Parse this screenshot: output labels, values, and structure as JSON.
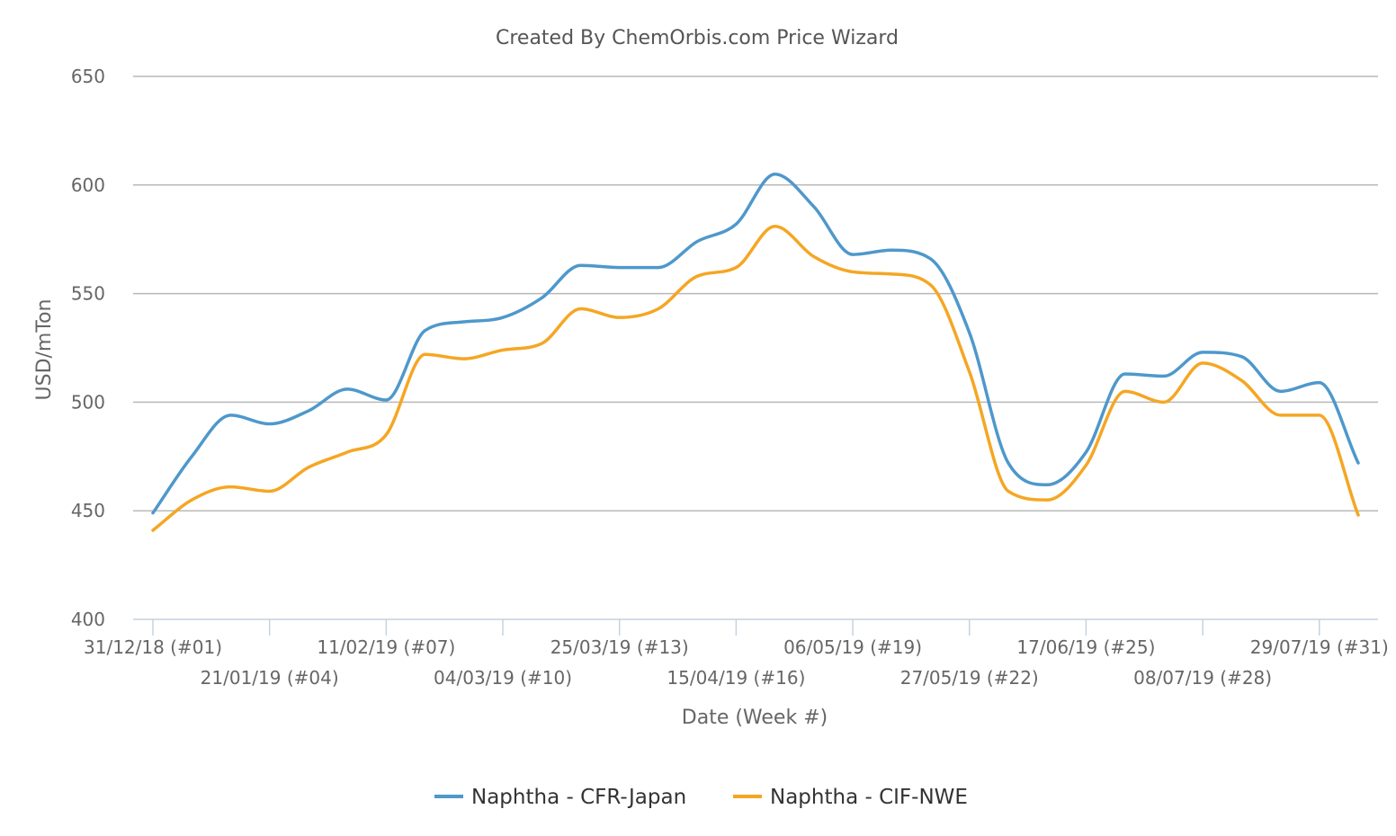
{
  "chart_data": {
    "type": "line",
    "title": "Created By ChemOrbis.com Price Wizard",
    "xlabel": "Date (Week #)",
    "ylabel": "USD/mTon",
    "ylim": [
      400,
      650
    ],
    "yticks": [
      400,
      450,
      500,
      550,
      600,
      650
    ],
    "grid": true,
    "legend_position": "bottom-center",
    "x_week_range": [
      1,
      32
    ],
    "x_tick_labels": [
      {
        "week": 1,
        "label": "31/12/18 (#01)"
      },
      {
        "week": 4,
        "label": "21/01/19 (#04)"
      },
      {
        "week": 7,
        "label": "11/02/19 (#07)"
      },
      {
        "week": 10,
        "label": "04/03/19 (#10)"
      },
      {
        "week": 13,
        "label": "25/03/19 (#13)"
      },
      {
        "week": 16,
        "label": "15/04/19 (#16)"
      },
      {
        "week": 19,
        "label": "06/05/19 (#19)"
      },
      {
        "week": 22,
        "label": "27/05/19 (#22)"
      },
      {
        "week": 25,
        "label": "17/06/19 (#25)"
      },
      {
        "week": 28,
        "label": "08/07/19 (#28)"
      },
      {
        "week": 31,
        "label": "29/07/19 (#31)"
      }
    ],
    "x": [
      1,
      2,
      3,
      4,
      5,
      6,
      7,
      8,
      9,
      10,
      11,
      12,
      13,
      14,
      15,
      16,
      17,
      18,
      19,
      20,
      21,
      22,
      23,
      24,
      25,
      26,
      27,
      28,
      29,
      30,
      31,
      32
    ],
    "series": [
      {
        "name": "Naphtha - CFR-Japan",
        "color": "#4e98cb",
        "values": [
          449,
          475,
          494,
          490,
          496,
          506,
          501,
          533,
          537,
          539,
          548,
          563,
          562,
          562,
          574,
          582,
          605,
          590,
          568,
          570,
          566,
          532,
          472,
          462,
          477,
          513,
          512,
          523,
          521,
          505,
          509,
          472
        ]
      },
      {
        "name": "Naphtha - CIF-NWE",
        "color": "#f5a623",
        "values": [
          441,
          455,
          461,
          459,
          470,
          477,
          485,
          522,
          520,
          524,
          527,
          543,
          539,
          543,
          558,
          562,
          581,
          567,
          560,
          559,
          554,
          514,
          459,
          455,
          471,
          505,
          500,
          518,
          510,
          494,
          494,
          448
        ]
      }
    ]
  }
}
